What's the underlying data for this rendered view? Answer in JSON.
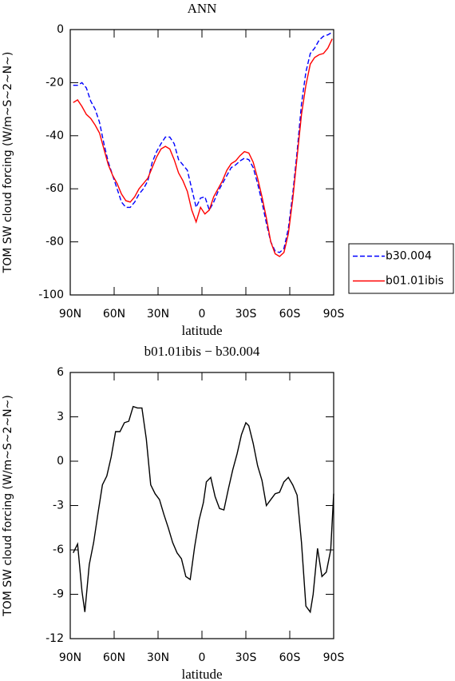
{
  "chart_data": [
    {
      "type": "line",
      "title": "ANN",
      "x_label": "latitude",
      "y_label": "TOM SW cloud forcing (W/m~S~2~N~)",
      "x": [
        88,
        85,
        82,
        79,
        76,
        73,
        70,
        67,
        64,
        61,
        58,
        55,
        52,
        49,
        46,
        43,
        40,
        37,
        34,
        31,
        28,
        25,
        22,
        19,
        16,
        13,
        10,
        7,
        4,
        1,
        -2,
        -5,
        -8,
        -11,
        -14,
        -17,
        -20,
        -23,
        -26,
        -29,
        -32,
        -35,
        -38,
        -41,
        -44,
        -47,
        -50,
        -53,
        -56,
        -59,
        -62,
        -65,
        -68,
        -71,
        -74,
        -77,
        -80,
        -83,
        -86,
        -89
      ],
      "series": [
        {
          "name": "b30.004",
          "color": "#0000ff",
          "dash": true,
          "values": [
            -21,
            -21,
            -20,
            -22,
            -27,
            -30,
            -35,
            -43,
            -50,
            -55,
            -60,
            -65,
            -67,
            -67,
            -65,
            -62,
            -60,
            -57,
            -50,
            -46,
            -43,
            -40.5,
            -40.5,
            -43,
            -49,
            -51,
            -53,
            -60,
            -67,
            -63.5,
            -63,
            -68,
            -65,
            -61,
            -58,
            -55,
            -52,
            -51,
            -49.5,
            -48.5,
            -49,
            -52,
            -58,
            -65,
            -73,
            -80,
            -83.5,
            -84,
            -82.5,
            -75,
            -62,
            -46,
            -28,
            -16,
            -9,
            -7,
            -4,
            -2.5,
            -2,
            -1
          ]
        },
        {
          "name": "b01.01ibis",
          "color": "#ff0000",
          "dash": false,
          "values": [
            -27.5,
            -26.5,
            -29,
            -32,
            -33.5,
            -36,
            -39,
            -45,
            -51,
            -55,
            -58,
            -62,
            -64.5,
            -65,
            -63,
            -60,
            -58,
            -56,
            -52,
            -48,
            -45,
            -44,
            -45,
            -49,
            -54,
            -57,
            -61,
            -68,
            -72.5,
            -67,
            -69.5,
            -68,
            -63,
            -60,
            -57,
            -53,
            -50.5,
            -49.5,
            -47.5,
            -46,
            -46.5,
            -50,
            -56,
            -63,
            -71,
            -80,
            -84.5,
            -85.5,
            -84,
            -77,
            -64,
            -48,
            -32,
            -21,
            -13,
            -10.5,
            -9.5,
            -9,
            -7,
            -3.5
          ]
        }
      ],
      "xlim": [
        90,
        -90
      ],
      "xticks": [
        {
          "value": 90,
          "label": "90N"
        },
        {
          "value": 60,
          "label": "60N"
        },
        {
          "value": 30,
          "label": "30N"
        },
        0,
        {
          "value": -30,
          "label": "30S"
        },
        {
          "value": -60,
          "label": "60S"
        },
        {
          "value": -90,
          "label": "90S"
        }
      ],
      "ylim": [
        -100,
        0
      ],
      "yticks": [
        0,
        -20,
        -40,
        -60,
        -80,
        -100
      ],
      "legend": "right"
    },
    {
      "type": "line",
      "title": "b01.01ibis − b30.004",
      "x_label": "latitude",
      "y_label": "TOM SW cloud forcing (W/m~S~2~N~)",
      "x": [
        88,
        85,
        82,
        80,
        77,
        74,
        71,
        68,
        65,
        62,
        59,
        56,
        53,
        50,
        47,
        44,
        41,
        38,
        35,
        32,
        29,
        26,
        23,
        20,
        17,
        14,
        11,
        8,
        5,
        2,
        -1,
        -3,
        -6,
        -9,
        -12,
        -15,
        -18,
        -21,
        -24,
        -27,
        -30,
        -32,
        -35,
        -38,
        -41,
        -44,
        -47,
        -50,
        -53,
        -56,
        -59,
        -62,
        -65,
        -68,
        -71,
        -74,
        -76,
        -79,
        -82,
        -85,
        -88,
        -90
      ],
      "series": [
        {
          "name": "b01.01ibis − b30.004",
          "color": "#000000",
          "dash": false,
          "values": [
            -6.2,
            -5.6,
            -8.8,
            -10.2,
            -7,
            -5.5,
            -3.5,
            -1.6,
            -1,
            0.3,
            2,
            2,
            2.6,
            2.7,
            3.7,
            3.6,
            3.6,
            1.5,
            -1.6,
            -2.2,
            -2.6,
            -3.6,
            -4.5,
            -5.5,
            -6.2,
            -6.6,
            -7.8,
            -8,
            -5.8,
            -4,
            -2.8,
            -1.4,
            -1.1,
            -2.4,
            -3.2,
            -3.3,
            -1.9,
            -0.6,
            0.5,
            1.8,
            2.6,
            2.4,
            1.2,
            -0.3,
            -1.3,
            -3,
            -2.6,
            -2.2,
            -2.1,
            -1.4,
            -1.1,
            -1.6,
            -2.3,
            -5.5,
            -9.8,
            -10.2,
            -9,
            -5.9,
            -7.8,
            -7.5,
            -6,
            -2.2
          ]
        }
      ],
      "xlim": [
        90,
        -90
      ],
      "xticks": [
        {
          "value": 90,
          "label": "90N"
        },
        {
          "value": 60,
          "label": "60N"
        },
        {
          "value": 30,
          "label": "30N"
        },
        0,
        {
          "value": -30,
          "label": "30S"
        },
        {
          "value": -60,
          "label": "60S"
        },
        {
          "value": -90,
          "label": "90S"
        }
      ],
      "ylim": [
        -12,
        6
      ],
      "yticks": [
        6,
        3,
        0,
        -3,
        -6,
        -9,
        -12
      ]
    }
  ]
}
